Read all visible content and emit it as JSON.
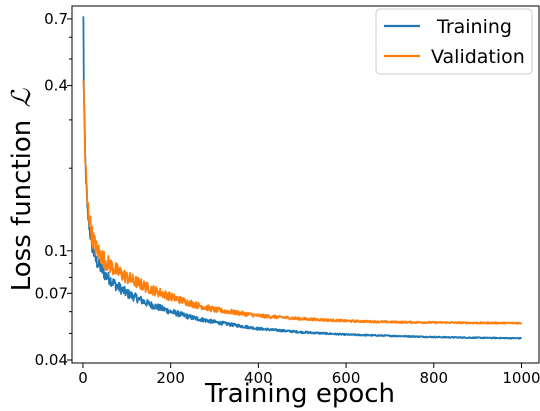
{
  "chart_data": {
    "type": "line",
    "xlabel": "Training epoch",
    "ylabel": "Loss function",
    "ylabel_symbol": "ℒ",
    "yscale": "log",
    "xlim": [
      -25,
      1040
    ],
    "ylim": [
      0.039,
      0.78
    ],
    "x_ticks": [
      0,
      200,
      400,
      600,
      800,
      1000
    ],
    "x_tick_labels": [
      "0",
      "200",
      "400",
      "600",
      "800",
      "1000"
    ],
    "y_ticks": [
      0.04,
      0.07,
      0.1,
      0.4,
      0.7
    ],
    "y_tick_labels": [
      "0.04",
      "0.07",
      "0.1",
      "0.4",
      "0.7"
    ],
    "grid": false,
    "legend_position": "top-right",
    "series": [
      {
        "name": "Training",
        "color": "#1f77b4",
        "x": [
          1,
          2,
          5,
          10,
          20,
          30,
          50,
          75,
          100,
          150,
          200,
          250,
          300,
          400,
          500,
          600,
          700,
          800,
          900,
          1000
        ],
        "values": [
          0.7,
          0.4,
          0.22,
          0.14,
          0.105,
          0.092,
          0.082,
          0.075,
          0.07,
          0.064,
          0.06,
          0.057,
          0.055,
          0.052,
          0.0505,
          0.0495,
          0.049,
          0.0485,
          0.0482,
          0.048
        ]
      },
      {
        "name": "Validation",
        "color": "#ff7f0e",
        "x": [
          1,
          2,
          5,
          10,
          20,
          30,
          50,
          75,
          100,
          150,
          200,
          250,
          300,
          400,
          500,
          600,
          700,
          800,
          900,
          1000
        ],
        "values": [
          0.43,
          0.36,
          0.22,
          0.15,
          0.115,
          0.102,
          0.092,
          0.085,
          0.08,
          0.073,
          0.068,
          0.064,
          0.061,
          0.058,
          0.0565,
          0.0555,
          0.055,
          0.0548,
          0.0546,
          0.0545
        ]
      }
    ]
  }
}
